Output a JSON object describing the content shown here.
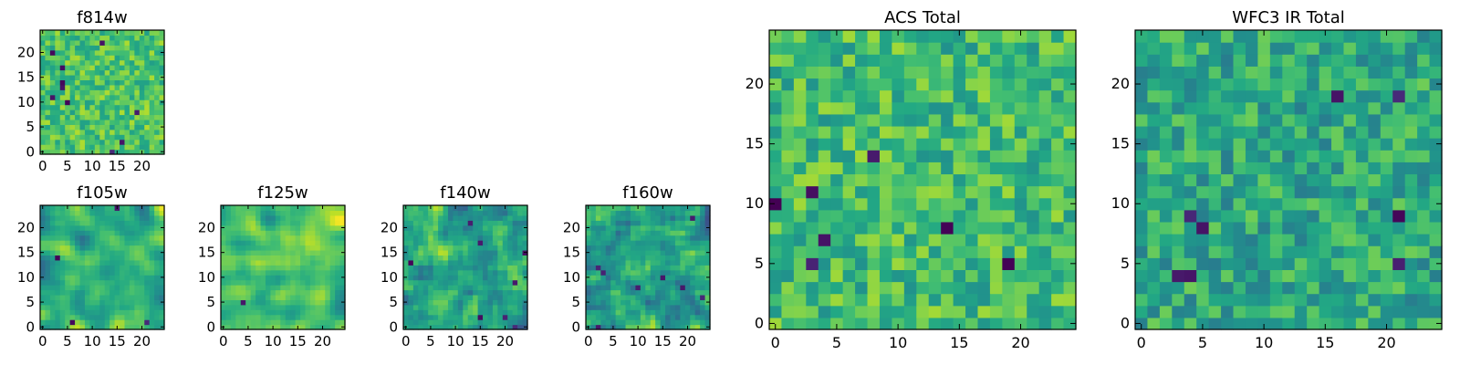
{
  "chart_data": [
    {
      "type": "heatmap",
      "title": "f814w",
      "colormap": "viridis",
      "grid": false,
      "x": {
        "range": [
          -0.5,
          24.5
        ],
        "ticks": [
          0,
          5,
          10,
          15,
          20
        ],
        "tick_labels": [
          "0",
          "5",
          "10",
          "15",
          "20"
        ]
      },
      "y": {
        "range": [
          -0.5,
          24.5
        ],
        "ticks": [
          0,
          5,
          10,
          15,
          20
        ],
        "tick_labels": [
          "0",
          "5",
          "10",
          "15",
          "20"
        ]
      },
      "rows": 25,
      "cols": 25,
      "seed": 11,
      "smoothness": 0,
      "mean": 0.72,
      "spread": 0.32,
      "dark_cells": 10
    },
    {
      "type": "heatmap",
      "title": "f105w",
      "colormap": "viridis",
      "grid": false,
      "x": {
        "range": [
          -0.5,
          24.5
        ],
        "ticks": [
          0,
          5,
          10,
          15,
          20
        ],
        "tick_labels": [
          "0",
          "5",
          "10",
          "15",
          "20"
        ]
      },
      "y": {
        "range": [
          -0.5,
          24.5
        ],
        "ticks": [
          0,
          5,
          10,
          15,
          20
        ],
        "tick_labels": [
          "0",
          "5",
          "10",
          "15",
          "20"
        ]
      },
      "rows": 25,
      "cols": 25,
      "seed": 23,
      "smoothness": 2,
      "mean": 0.66,
      "spread": 0.62,
      "dark_cells": 4
    },
    {
      "type": "heatmap",
      "title": "f125w",
      "colormap": "viridis",
      "grid": false,
      "x": {
        "range": [
          -0.5,
          24.5
        ],
        "ticks": [
          0,
          5,
          10,
          15,
          20
        ],
        "tick_labels": [
          "0",
          "5",
          "10",
          "15",
          "20"
        ]
      },
      "y": {
        "range": [
          -0.5,
          24.5
        ],
        "ticks": [
          0,
          5,
          10,
          15,
          20
        ],
        "tick_labels": [
          "0",
          "5",
          "10",
          "15",
          "20"
        ]
      },
      "rows": 25,
      "cols": 25,
      "seed": 37,
      "smoothness": 2,
      "mean": 0.72,
      "spread": 0.58,
      "dark_cells": 1
    },
    {
      "type": "heatmap",
      "title": "f140w",
      "colormap": "viridis",
      "grid": false,
      "x": {
        "range": [
          -0.5,
          24.5
        ],
        "ticks": [
          0,
          5,
          10,
          15,
          20
        ],
        "tick_labels": [
          "0",
          "5",
          "10",
          "15",
          "20"
        ]
      },
      "y": {
        "range": [
          -0.5,
          24.5
        ],
        "ticks": [
          0,
          5,
          10,
          15,
          20
        ],
        "tick_labels": [
          "0",
          "5",
          "10",
          "15",
          "20"
        ]
      },
      "rows": 25,
      "cols": 25,
      "seed": 41,
      "smoothness": 1,
      "mean": 0.58,
      "spread": 0.62,
      "dark_cells": 8
    },
    {
      "type": "heatmap",
      "title": "f160w",
      "colormap": "viridis",
      "grid": false,
      "x": {
        "range": [
          -0.5,
          24.5
        ],
        "ticks": [
          0,
          5,
          10,
          15,
          20
        ],
        "tick_labels": [
          "0",
          "5",
          "10",
          "15",
          "20"
        ]
      },
      "y": {
        "range": [
          -0.5,
          24.5
        ],
        "ticks": [
          0,
          5,
          10,
          15,
          20
        ],
        "tick_labels": [
          "0",
          "5",
          "10",
          "15",
          "20"
        ]
      },
      "rows": 25,
      "cols": 25,
      "seed": 53,
      "smoothness": 1,
      "mean": 0.56,
      "spread": 0.64,
      "dark_cells": 8
    },
    {
      "type": "heatmap",
      "title": "ACS Total",
      "colormap": "viridis",
      "grid": false,
      "x": {
        "range": [
          -0.5,
          24.5
        ],
        "ticks": [
          0,
          5,
          10,
          15,
          20
        ],
        "tick_labels": [
          "0",
          "5",
          "10",
          "15",
          "20"
        ]
      },
      "y": {
        "range": [
          -0.5,
          24.5
        ],
        "ticks": [
          0,
          5,
          10,
          15,
          20
        ],
        "tick_labels": [
          "0",
          "5",
          "10",
          "15",
          "20"
        ]
      },
      "rows": 25,
      "cols": 25,
      "seed": 67,
      "smoothness": 0,
      "mean": 0.68,
      "spread": 0.36,
      "dark_cells": 7
    },
    {
      "type": "heatmap",
      "title": "WFC3 IR Total",
      "colormap": "viridis",
      "grid": false,
      "x": {
        "range": [
          -0.5,
          24.5
        ],
        "ticks": [
          0,
          5,
          10,
          15,
          20
        ],
        "tick_labels": [
          "0",
          "5",
          "10",
          "15",
          "20"
        ]
      },
      "y": {
        "range": [
          -0.5,
          24.5
        ],
        "ticks": [
          0,
          5,
          10,
          15,
          20
        ],
        "tick_labels": [
          "0",
          "5",
          "10",
          "15",
          "20"
        ]
      },
      "rows": 25,
      "cols": 25,
      "seed": 79,
      "smoothness": 0,
      "mean": 0.6,
      "spread": 0.36,
      "dark_cells": 8
    }
  ]
}
